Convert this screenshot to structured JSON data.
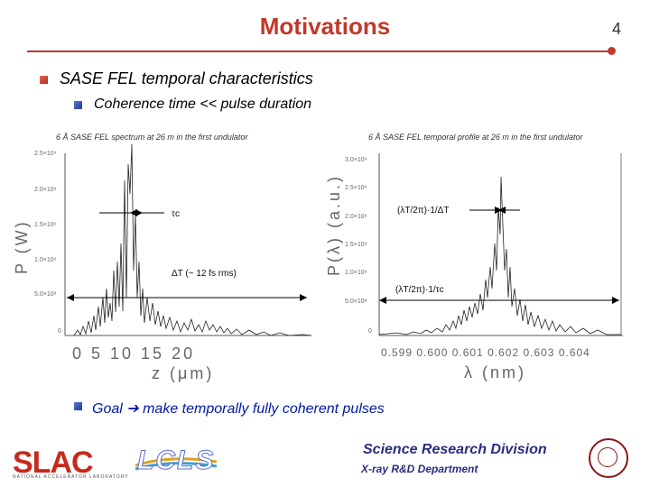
{
  "slide": {
    "title": "Motivations",
    "page_number": "4"
  },
  "bullets": {
    "main": "SASE FEL temporal characteristics",
    "sub1": "Coherence time << pulse duration",
    "goal": "Goal ➔ make temporally fully coherent pulses"
  },
  "left_plot": {
    "title": "6 Å SASE FEL spectrum at 26 m in the first undulator",
    "xticks": "0  5  10  15  20",
    "xlabel": "z (μm)",
    "ylabel": "P (W)",
    "yticks": [
      "2.5×10⁹",
      "2.0×10⁹",
      "1.5×10⁹",
      "1.0×10⁹",
      "5.0×10⁸",
      "0"
    ],
    "annot_tau": "τᴄ",
    "annot_dT": "ΔT  (~ 12 fs rms)"
  },
  "right_plot": {
    "title": "6 Å SASE FEL temporal profile at 26 m in the first undulator",
    "xticks": "0.599 0.600 0.601 0.602 0.603 0.604",
    "xlabel": "λ (nm)",
    "ylabel": "P(λ) (a.u.)",
    "yticks": [
      "3.0×10⁹",
      "2.5×10⁹",
      "2.0×10⁹",
      "1.5×10⁹",
      "1.0×10⁹",
      "5.0×10⁸",
      "0"
    ],
    "annot_top": "(λT/2π)·1/ΔT",
    "annot_bottom": "(λT/2π)·1/τᴄ"
  },
  "footer": {
    "division": "Science Research Division",
    "department": "X-ray R&D Department",
    "slac_logo": "SLAC",
    "slac_subtitle": "NATIONAL ACCELERATOR LABORATORY",
    "lcls_logo": "LCLS"
  },
  "colors": {
    "title_red": "#c0392b",
    "goal_blue": "#0018a8",
    "division_navy": "#2a2d80"
  }
}
